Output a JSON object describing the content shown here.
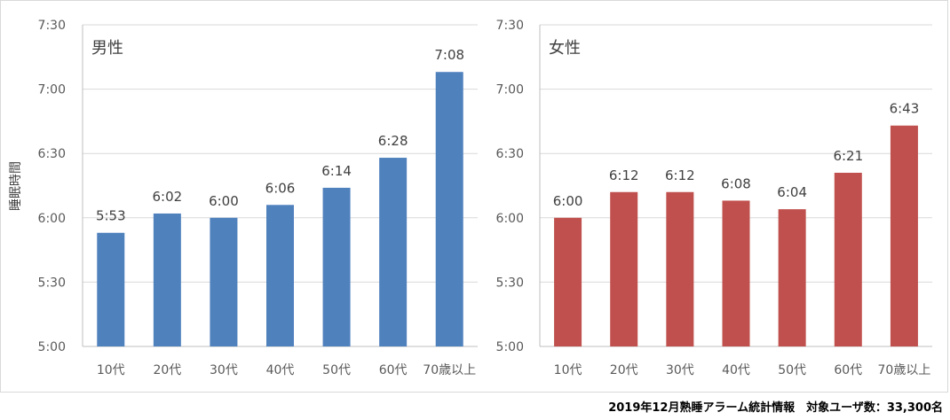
{
  "ylabel": "睡眠時間",
  "footer": "2019年12月熟睡アラーム統計情報　対象ユーザ数：33,300名",
  "colors": {
    "male": "#4f81bd",
    "female": "#c0504d",
    "grid": "#d9d9d9",
    "axis": "#bfbfbf"
  },
  "chart_data": [
    {
      "type": "bar",
      "title": "男性",
      "categories": [
        "10代",
        "20代",
        "30代",
        "40代",
        "50代",
        "60代",
        "70歳以上"
      ],
      "values": [
        "5:53",
        "6:02",
        "6:00",
        "6:06",
        "6:14",
        "6:28",
        "7:08"
      ],
      "data_labels": [
        "5:53",
        "6:02",
        "6:00",
        "6:06",
        "6:14",
        "6:28",
        "7:08"
      ],
      "ylabel": "睡眠時間",
      "ylim": [
        "5:00",
        "7:30"
      ],
      "yticks": [
        "5:00",
        "5:30",
        "6:00",
        "6:30",
        "7:00",
        "7:30"
      ],
      "grid": true
    },
    {
      "type": "bar",
      "title": "女性",
      "categories": [
        "10代",
        "20代",
        "30代",
        "40代",
        "50代",
        "60代",
        "70歳以上"
      ],
      "values": [
        "6:00",
        "6:12",
        "6:12",
        "6:08",
        "6:04",
        "6:21",
        "6:43"
      ],
      "data_labels": [
        "6:00",
        "6:12",
        "6:12",
        "6:08",
        "6:04",
        "6:21",
        "6:43"
      ],
      "ylim": [
        "5:00",
        "7:30"
      ],
      "yticks": [
        "5:00",
        "5:30",
        "6:00",
        "6:30",
        "7:00",
        "7:30"
      ],
      "grid": true
    }
  ]
}
